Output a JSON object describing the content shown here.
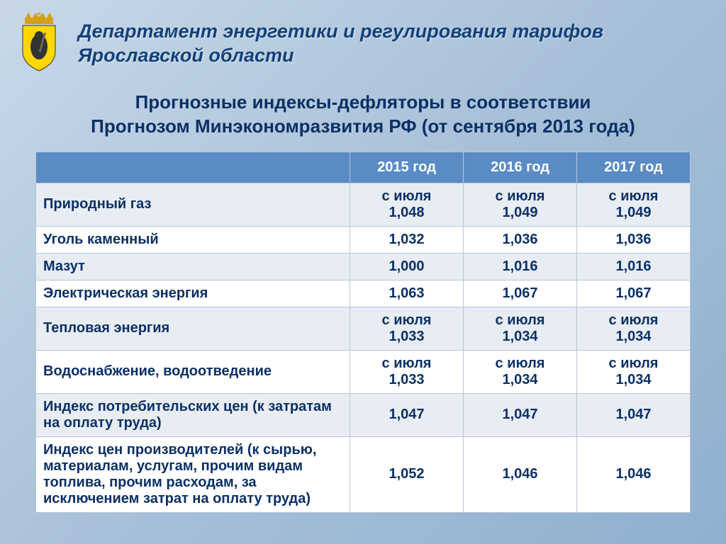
{
  "header": {
    "title_line1": "Департамент энергетики и регулирования тарифов",
    "title_line2": "Ярославской области"
  },
  "subtitle_line1": "Прогнозные индексы-дефляторы в соответствии",
  "subtitle_line2": "Прогнозом Минэкономразвития РФ (от сентября 2013 года)",
  "table": {
    "columns": [
      "",
      "2015 год",
      "2016 год",
      "2017 год"
    ],
    "column_widths": [
      "48%",
      "17.3%",
      "17.3%",
      "17.3%"
    ],
    "header_bg": "#5b8bc5",
    "header_color": "#ffffff",
    "row_even_bg": "#e8edf4",
    "row_odd_bg": "#ffffff",
    "text_color": "#0b3066",
    "border_color": "#b8c5d6",
    "rows": [
      {
        "label": "Природный газ",
        "cells": [
          "с июля 1,048",
          "с июля 1,049",
          "с июля 1,049"
        ],
        "twoline": true
      },
      {
        "label": "Уголь каменный",
        "cells": [
          "1,032",
          "1,036",
          "1,036"
        ],
        "twoline": false
      },
      {
        "label": "Мазут",
        "cells": [
          "1,000",
          "1,016",
          "1,016"
        ],
        "twoline": false
      },
      {
        "label": "Электрическая энергия",
        "cells": [
          "1,063",
          "1,067",
          "1,067"
        ],
        "twoline": false
      },
      {
        "label": "Тепловая энергия",
        "cells": [
          "с июля 1,033",
          "с июля 1,034",
          "с июля 1,034"
        ],
        "twoline": true
      },
      {
        "label": "Водоснабжение, водоотведение",
        "cells": [
          "с июля 1,033",
          "с июля 1,034",
          "с июля 1,034"
        ],
        "twoline": true
      },
      {
        "label": "Индекс потребительских цен (к затратам на оплату труда)",
        "cells": [
          "1,047",
          "1,047",
          "1,047"
        ],
        "twoline": false
      },
      {
        "label": "Индекс цен производителей (к сырью, материалам, услугам, прочим видам топлива, прочим расходам, за исключением затрат на оплату труда)",
        "cells": [
          "1,052",
          "1,046",
          "1,046"
        ],
        "twoline": false
      }
    ]
  },
  "colors": {
    "bg_gradient_start": "#c8d8e8",
    "bg_gradient_end": "#8fb0d0",
    "title_color": "#13417a",
    "subtitle_color": "#0b3066"
  }
}
